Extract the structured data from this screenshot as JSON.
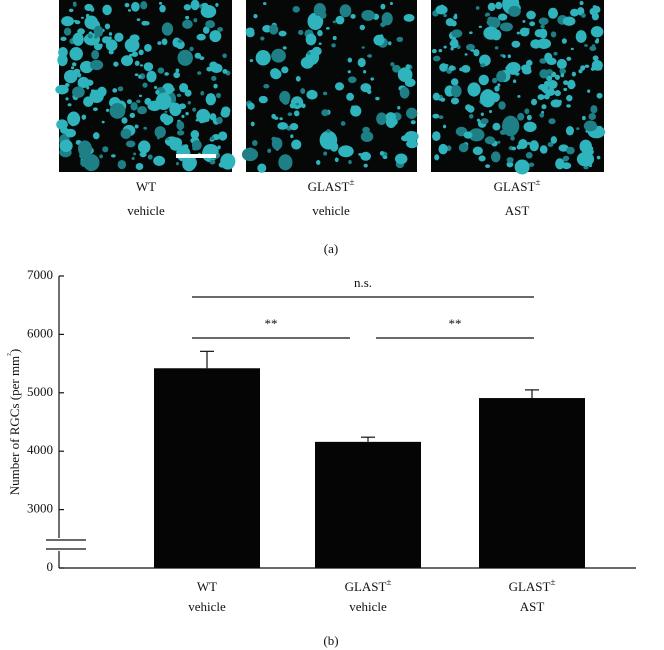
{
  "panels": {
    "captions": [
      [
        "WT",
        "vehicle"
      ],
      [
        "GLAST±",
        "vehicle"
      ],
      [
        "GLAST±",
        "AST"
      ]
    ],
    "label": "(a)"
  },
  "chart_data": {
    "type": "bar",
    "panel_label": "(b)",
    "ylabel": "Number of RGCs (per mm²)",
    "categories": [
      [
        "WT",
        "vehicle"
      ],
      [
        "GLAST±",
        "vehicle"
      ],
      [
        "GLAST±",
        "AST"
      ]
    ],
    "values": [
      5420,
      4160,
      4910
    ],
    "errors": [
      290,
      80,
      140
    ],
    "color": "#050505",
    "ylim": [
      0,
      7000
    ],
    "y_break": [
      0,
      2000
    ],
    "yticks": [
      0,
      3000,
      4000,
      5000,
      6000,
      7000
    ],
    "significance": [
      {
        "from": 0,
        "to": 2,
        "label": "n.s."
      },
      {
        "from": 0,
        "to": 1,
        "label": "**"
      },
      {
        "from": 1,
        "to": 2,
        "label": "**"
      }
    ]
  }
}
